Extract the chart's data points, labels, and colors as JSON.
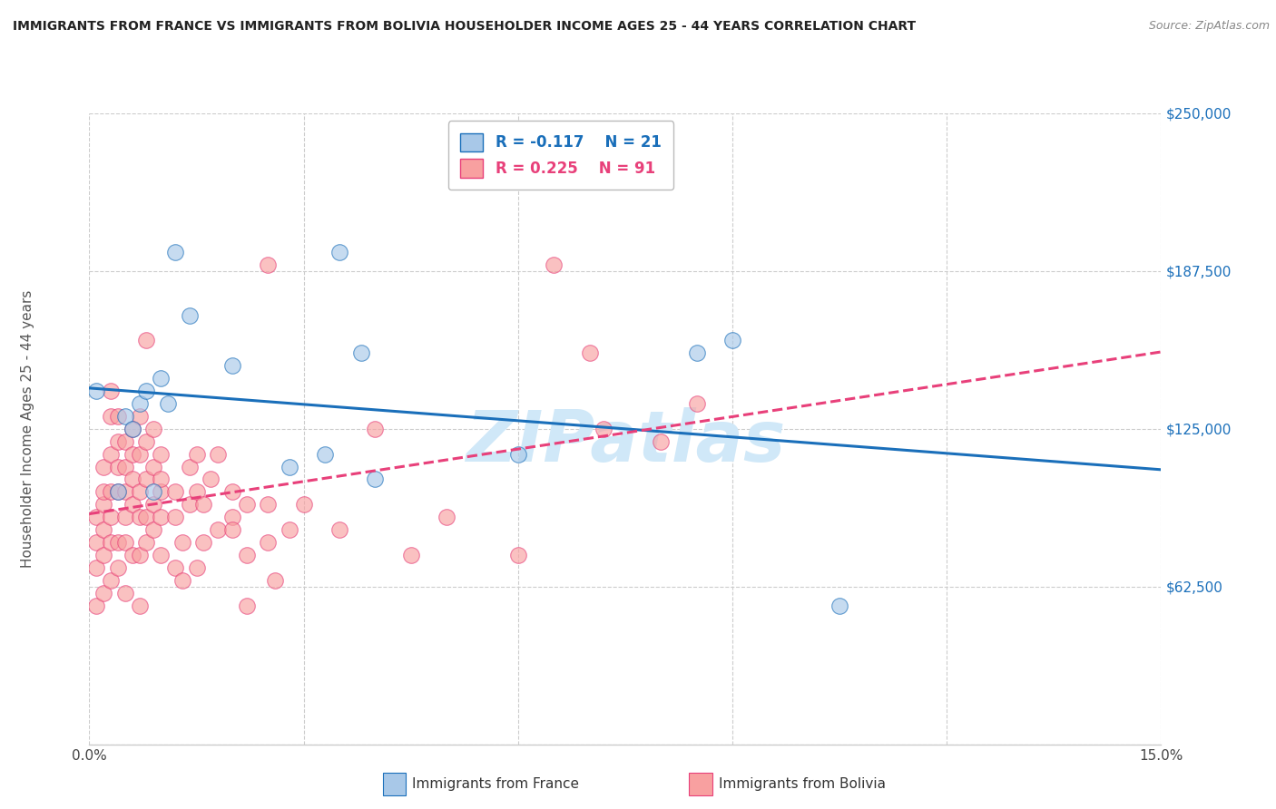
{
  "title": "IMMIGRANTS FROM FRANCE VS IMMIGRANTS FROM BOLIVIA HOUSEHOLDER INCOME AGES 25 - 44 YEARS CORRELATION CHART",
  "source": "Source: ZipAtlas.com",
  "ylabel": "Householder Income Ages 25 - 44 years",
  "xlim": [
    0.0,
    0.15
  ],
  "ylim": [
    0,
    250000
  ],
  "xticks": [
    0.0,
    0.03,
    0.06,
    0.09,
    0.12,
    0.15
  ],
  "xticklabels": [
    "0.0%",
    "",
    "",
    "",
    "",
    "15.0%"
  ],
  "ytick_positions": [
    0,
    62500,
    125000,
    187500,
    250000
  ],
  "ytick_labels": [
    "",
    "$62,500",
    "$125,000",
    "$187,500",
    "$250,000"
  ],
  "france_color": "#a8c8e8",
  "bolivia_color": "#f8a0a0",
  "france_R": -0.117,
  "france_N": 21,
  "bolivia_R": 0.225,
  "bolivia_N": 91,
  "france_scatter": [
    [
      0.001,
      140000
    ],
    [
      0.004,
      100000
    ],
    [
      0.005,
      130000
    ],
    [
      0.006,
      125000
    ],
    [
      0.007,
      135000
    ],
    [
      0.008,
      140000
    ],
    [
      0.009,
      100000
    ],
    [
      0.01,
      145000
    ],
    [
      0.011,
      135000
    ],
    [
      0.012,
      195000
    ],
    [
      0.014,
      170000
    ],
    [
      0.02,
      150000
    ],
    [
      0.028,
      110000
    ],
    [
      0.033,
      115000
    ],
    [
      0.035,
      195000
    ],
    [
      0.038,
      155000
    ],
    [
      0.04,
      105000
    ],
    [
      0.06,
      115000
    ],
    [
      0.085,
      155000
    ],
    [
      0.09,
      160000
    ],
    [
      0.105,
      55000
    ]
  ],
  "bolivia_scatter": [
    [
      0.001,
      55000
    ],
    [
      0.001,
      70000
    ],
    [
      0.001,
      80000
    ],
    [
      0.001,
      90000
    ],
    [
      0.002,
      60000
    ],
    [
      0.002,
      75000
    ],
    [
      0.002,
      85000
    ],
    [
      0.002,
      95000
    ],
    [
      0.002,
      100000
    ],
    [
      0.002,
      110000
    ],
    [
      0.003,
      65000
    ],
    [
      0.003,
      80000
    ],
    [
      0.003,
      90000
    ],
    [
      0.003,
      100000
    ],
    [
      0.003,
      115000
    ],
    [
      0.003,
      130000
    ],
    [
      0.003,
      140000
    ],
    [
      0.004,
      70000
    ],
    [
      0.004,
      80000
    ],
    [
      0.004,
      100000
    ],
    [
      0.004,
      110000
    ],
    [
      0.004,
      120000
    ],
    [
      0.004,
      130000
    ],
    [
      0.005,
      60000
    ],
    [
      0.005,
      80000
    ],
    [
      0.005,
      90000
    ],
    [
      0.005,
      100000
    ],
    [
      0.005,
      110000
    ],
    [
      0.005,
      120000
    ],
    [
      0.006,
      75000
    ],
    [
      0.006,
      95000
    ],
    [
      0.006,
      105000
    ],
    [
      0.006,
      115000
    ],
    [
      0.006,
      125000
    ],
    [
      0.007,
      55000
    ],
    [
      0.007,
      75000
    ],
    [
      0.007,
      90000
    ],
    [
      0.007,
      100000
    ],
    [
      0.007,
      115000
    ],
    [
      0.007,
      130000
    ],
    [
      0.008,
      80000
    ],
    [
      0.008,
      90000
    ],
    [
      0.008,
      105000
    ],
    [
      0.008,
      120000
    ],
    [
      0.008,
      160000
    ],
    [
      0.009,
      85000
    ],
    [
      0.009,
      95000
    ],
    [
      0.009,
      110000
    ],
    [
      0.009,
      125000
    ],
    [
      0.01,
      75000
    ],
    [
      0.01,
      90000
    ],
    [
      0.01,
      100000
    ],
    [
      0.01,
      105000
    ],
    [
      0.01,
      115000
    ],
    [
      0.012,
      70000
    ],
    [
      0.012,
      90000
    ],
    [
      0.012,
      100000
    ],
    [
      0.013,
      80000
    ],
    [
      0.013,
      65000
    ],
    [
      0.014,
      95000
    ],
    [
      0.014,
      110000
    ],
    [
      0.015,
      70000
    ],
    [
      0.015,
      100000
    ],
    [
      0.015,
      115000
    ],
    [
      0.016,
      80000
    ],
    [
      0.016,
      95000
    ],
    [
      0.017,
      105000
    ],
    [
      0.018,
      85000
    ],
    [
      0.018,
      115000
    ],
    [
      0.02,
      90000
    ],
    [
      0.02,
      100000
    ],
    [
      0.02,
      85000
    ],
    [
      0.022,
      75000
    ],
    [
      0.022,
      95000
    ],
    [
      0.022,
      55000
    ],
    [
      0.025,
      80000
    ],
    [
      0.025,
      95000
    ],
    [
      0.025,
      190000
    ],
    [
      0.026,
      65000
    ],
    [
      0.028,
      85000
    ],
    [
      0.03,
      95000
    ],
    [
      0.035,
      85000
    ],
    [
      0.04,
      125000
    ],
    [
      0.045,
      75000
    ],
    [
      0.05,
      90000
    ],
    [
      0.06,
      75000
    ],
    [
      0.065,
      190000
    ],
    [
      0.07,
      155000
    ],
    [
      0.072,
      125000
    ],
    [
      0.08,
      120000
    ],
    [
      0.085,
      135000
    ]
  ],
  "france_line_color": "#1a6fba",
  "bolivia_line_color": "#e8407a",
  "watermark": "ZIPatlas",
  "watermark_color": "#d0e8f8",
  "legend_france_label": "Immigrants from France",
  "legend_bolivia_label": "Immigrants from Bolivia",
  "background_color": "#ffffff",
  "grid_color": "#cccccc"
}
